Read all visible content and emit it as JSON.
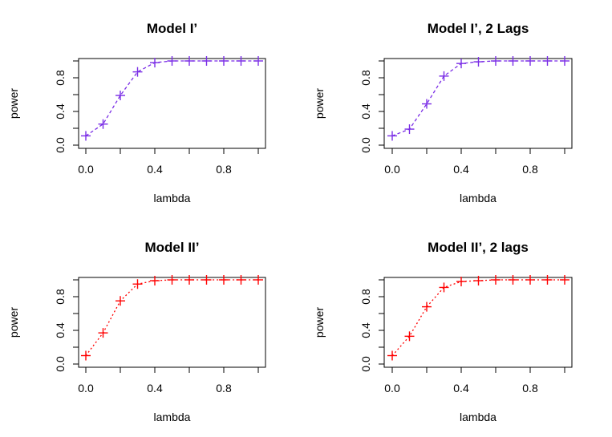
{
  "colors": {
    "purple": "#7a2de6",
    "red": "#ff0000"
  },
  "chart_data": [
    {
      "type": "line",
      "title": "Model I’",
      "xlabel": "lambda",
      "ylabel": "power",
      "xlim": [
        0,
        1
      ],
      "ylim": [
        0,
        1
      ],
      "xticks": [
        "0.0",
        "0.4",
        "0.8"
      ],
      "yticks": [
        "0.0",
        "0.4",
        "0.8"
      ],
      "line_style": "dashed",
      "marker": "plus",
      "color": "#7a2de6",
      "series": [
        {
          "x": [
            0,
            0.1,
            0.2,
            0.3,
            0.4,
            0.5,
            0.6,
            0.7,
            0.8,
            0.9,
            1.0
          ],
          "values": [
            0.11,
            0.25,
            0.59,
            0.87,
            0.98,
            1.0,
            1.0,
            1.0,
            1.0,
            1.0,
            1.0
          ]
        }
      ]
    },
    {
      "type": "line",
      "title": "Model I’, 2 Lags",
      "xlabel": "lambda",
      "ylabel": "power",
      "xlim": [
        0,
        1
      ],
      "ylim": [
        0,
        1
      ],
      "xticks": [
        "0.0",
        "0.4",
        "0.8"
      ],
      "yticks": [
        "0.0",
        "0.4",
        "0.8"
      ],
      "line_style": "dashed",
      "marker": "plus",
      "color": "#7a2de6",
      "series": [
        {
          "x": [
            0,
            0.1,
            0.2,
            0.3,
            0.4,
            0.5,
            0.6,
            0.7,
            0.8,
            0.9,
            1.0
          ],
          "values": [
            0.11,
            0.19,
            0.49,
            0.82,
            0.97,
            0.99,
            1.0,
            1.0,
            1.0,
            1.0,
            1.0
          ]
        }
      ]
    },
    {
      "type": "line",
      "title": "Model II’",
      "xlabel": "lambda",
      "ylabel": "power",
      "xlim": [
        0,
        1
      ],
      "ylim": [
        0,
        1
      ],
      "xticks": [
        "0.0",
        "0.4",
        "0.8"
      ],
      "yticks": [
        "0.0",
        "0.4",
        "0.8"
      ],
      "line_style": "dotted",
      "marker": "plus",
      "color": "#ff0000",
      "series": [
        {
          "x": [
            0,
            0.1,
            0.2,
            0.3,
            0.4,
            0.5,
            0.6,
            0.7,
            0.8,
            0.9,
            1.0
          ],
          "values": [
            0.1,
            0.37,
            0.75,
            0.95,
            0.99,
            1.0,
            1.0,
            1.0,
            1.0,
            1.0,
            1.0
          ]
        }
      ]
    },
    {
      "type": "line",
      "title": "Model II’, 2 lags",
      "xlabel": "lambda",
      "ylabel": "power",
      "xlim": [
        0,
        1
      ],
      "ylim": [
        0,
        1
      ],
      "xticks": [
        "0.0",
        "0.4",
        "0.8"
      ],
      "yticks": [
        "0.0",
        "0.4",
        "0.8"
      ],
      "line_style": "dotted",
      "marker": "plus",
      "color": "#ff0000",
      "series": [
        {
          "x": [
            0,
            0.1,
            0.2,
            0.3,
            0.4,
            0.5,
            0.6,
            0.7,
            0.8,
            0.9,
            1.0
          ],
          "values": [
            0.1,
            0.33,
            0.68,
            0.91,
            0.98,
            0.99,
            1.0,
            1.0,
            1.0,
            1.0,
            1.0
          ]
        }
      ]
    }
  ]
}
